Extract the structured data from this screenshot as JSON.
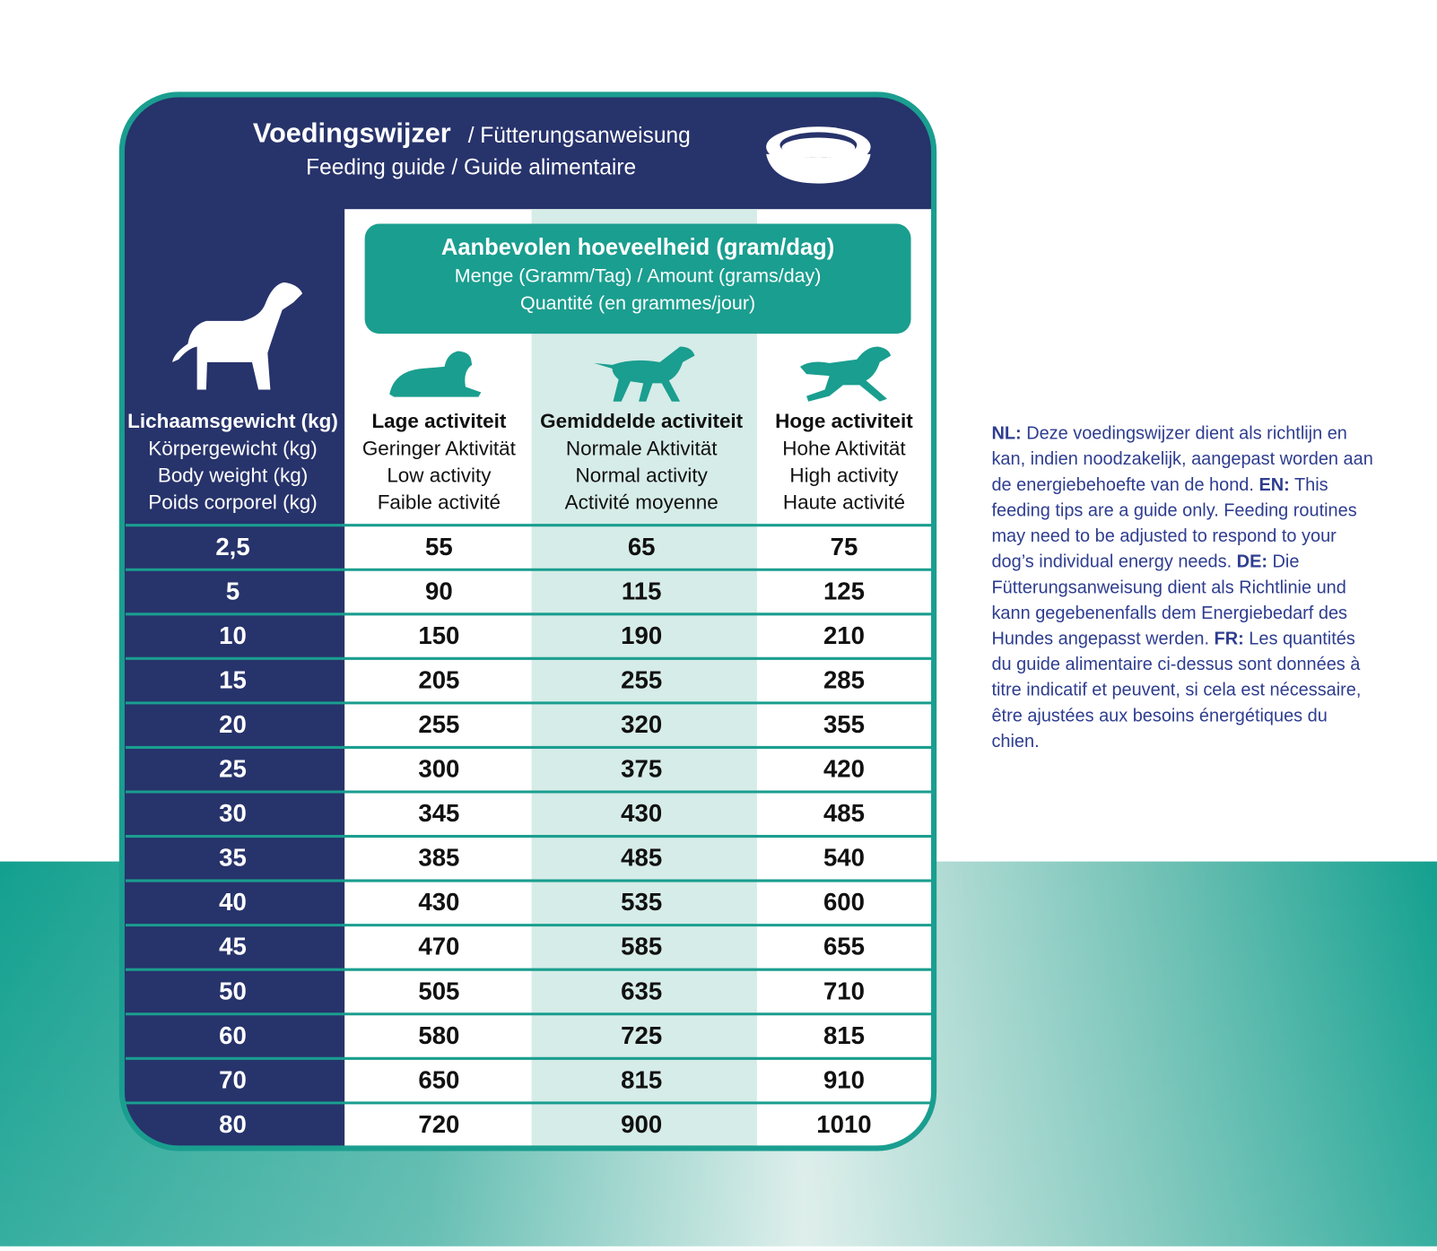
{
  "header": {
    "title_bold": "Voedingswijzer",
    "title_rest": " / Fütterungsanweisung",
    "subtitle": "Feeding guide / Guide alimentaire"
  },
  "amount_box": [
    "Aanbevolen hoeveelheid (gram/dag)",
    "Menge (Gramm/Tag) / Amount (grams/day)",
    "Quantité (en grammes/jour)"
  ],
  "table": {
    "header": [
      [
        "Lichaamsgewicht (kg)",
        "Körpergewicht (kg)",
        "Body weight (kg)",
        "Poids corporel (kg)"
      ],
      [
        "Lage activiteit",
        "Geringer Aktivität",
        "Low activity",
        "Faible activité"
      ],
      [
        "Gemiddelde activiteit",
        "Normale Aktivität",
        "Normal activity",
        "Activité moyenne"
      ],
      [
        "Hoge activiteit",
        "Hohe Aktivität",
        "High activity",
        "Haute activité"
      ]
    ],
    "rows": [
      [
        "2,5",
        55,
        65,
        75
      ],
      [
        "5",
        90,
        115,
        125
      ],
      [
        "10",
        150,
        190,
        210
      ],
      [
        "15",
        205,
        255,
        285
      ],
      [
        "20",
        255,
        320,
        355
      ],
      [
        "25",
        300,
        375,
        420
      ],
      [
        "30",
        345,
        430,
        485
      ],
      [
        "35",
        385,
        485,
        540
      ],
      [
        "40",
        430,
        535,
        600
      ],
      [
        "45",
        470,
        585,
        655
      ],
      [
        "50",
        505,
        635,
        710
      ],
      [
        "60",
        580,
        725,
        815
      ],
      [
        "70",
        650,
        815,
        910
      ],
      [
        "80",
        720,
        900,
        1010
      ]
    ]
  },
  "note": [
    {
      "code": "NL:",
      "text": " Deze voedingswijzer dient als richtlijn en kan, indien noodzakelijk, aangepast worden aan de energiebehoefte van de hond. "
    },
    {
      "code": "EN:",
      "text": " This feeding tips are a guide only. Feeding routines may need to be adjusted to respond to your dog’s individual energy needs. "
    },
    {
      "code": "DE:",
      "text": " Die Fütterungsanweisung dient als Richtlinie und kann gegebenenfalls dem Energiebedarf des Hundes angepasst werden. "
    },
    {
      "code": "FR:",
      "text": " Les quantités du guide alimentaire ci-dessus sont données à titre indicatif et peuvent, si cela est nécessaire, être ajustées aux besoins énergétiques du chien."
    }
  ]
}
